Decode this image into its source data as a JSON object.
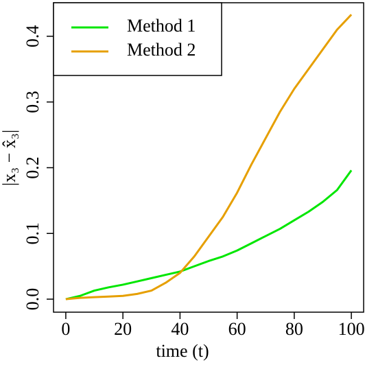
{
  "chart_data": {
    "type": "line",
    "xlabel": "time (t)",
    "ylabel": "|x₃ − x̂₃|",
    "x": [
      0,
      5,
      10,
      15,
      20,
      25,
      30,
      35,
      40,
      45,
      50,
      55,
      60,
      65,
      70,
      75,
      80,
      85,
      90,
      95,
      100
    ],
    "series": [
      {
        "name": "Method 1",
        "color": "#00e600",
        "values": [
          0,
          0.005,
          0.013,
          0.018,
          0.022,
          0.027,
          0.032,
          0.037,
          0.042,
          0.05,
          0.058,
          0.065,
          0.074,
          0.085,
          0.096,
          0.107,
          0.12,
          0.133,
          0.148,
          0.166,
          0.196
        ]
      },
      {
        "name": "Method 2",
        "color": "#e69f00",
        "values": [
          0,
          0.002,
          0.003,
          0.004,
          0.005,
          0.008,
          0.013,
          0.025,
          0.04,
          0.065,
          0.095,
          0.125,
          0.162,
          0.205,
          0.245,
          0.285,
          0.32,
          0.35,
          0.38,
          0.41,
          0.433
        ]
      }
    ],
    "xlim": [
      -4.3,
      104.3
    ],
    "ylim": [
      -0.0198,
      0.451
    ],
    "xticks": [
      0,
      20,
      40,
      60,
      80,
      100
    ],
    "yticks": [
      {
        "value": 0,
        "label": "0.0"
      },
      0.1,
      0.2,
      0.3,
      0.4
    ],
    "legend": "top-left"
  }
}
